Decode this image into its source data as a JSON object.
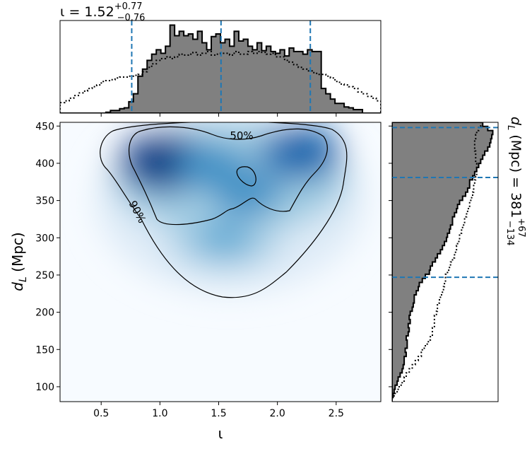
{
  "chart_data": {
    "type": "corner",
    "joint": {
      "type": "heatmap",
      "colormap": "Blues",
      "xlabel": "ι",
      "ylabel_base": "d",
      "ylabel_sub": "L",
      "ylabel_unit": " (Mpc)",
      "xlim": [
        0.15,
        2.88
      ],
      "ylim": [
        80,
        455
      ],
      "xticks": [
        0.5,
        1.0,
        1.5,
        2.0,
        2.5
      ],
      "xtick_labels": [
        "0.5",
        "1.0",
        "1.5",
        "2.0",
        "2.5"
      ],
      "yticks": [
        100,
        150,
        200,
        250,
        300,
        350,
        400,
        450
      ],
      "ytick_labels": [
        "100",
        "150",
        "200",
        "250",
        "300",
        "350",
        "400",
        "450"
      ],
      "density_peaks": [
        {
          "x": 1.03,
          "y": 402,
          "weight": 1.0
        },
        {
          "x": 2.2,
          "y": 415,
          "weight": 0.82
        },
        {
          "x": 1.45,
          "y": 395,
          "weight": 0.55
        },
        {
          "x": 1.75,
          "y": 360,
          "weight": 0.5
        },
        {
          "x": 1.55,
          "y": 300,
          "weight": 0.3
        }
      ],
      "contours": [
        {
          "level": "50%",
          "label": "50%"
        },
        {
          "level": "90%",
          "label": "90%"
        }
      ]
    },
    "iota_marginal": {
      "type": "histogram",
      "median": 1.52,
      "lower": 0.76,
      "upper": 2.28,
      "title_main": "ι = 1.52",
      "title_sup": "+0.77",
      "title_sub": "−0.76",
      "solid_hist": [
        0,
        0,
        0,
        0,
        0,
        0,
        0,
        0,
        0,
        0,
        0.01,
        0.03,
        0.03,
        0.05,
        0.06,
        0.13,
        0.22,
        0.42,
        0.5,
        0.6,
        0.67,
        0.72,
        0.68,
        0.76,
        1.0,
        0.88,
        0.93,
        0.88,
        0.9,
        0.84,
        0.93,
        0.8,
        0.72,
        0.87,
        0.9,
        0.8,
        0.84,
        0.76,
        0.93,
        0.82,
        0.84,
        0.76,
        0.72,
        0.8,
        0.71,
        0.76,
        0.7,
        0.68,
        0.72,
        0.65,
        0.74,
        0.7,
        0.7,
        0.67,
        0.72,
        0.7,
        0.7,
        0.28,
        0.22,
        0.16,
        0.11,
        0.11,
        0.07,
        0.06,
        0.04,
        0.04,
        0.0,
        0.0,
        0.0,
        0.0
      ],
      "dotted_hist": [
        0.12,
        0.14,
        0.17,
        0.2,
        0.23,
        0.25,
        0.28,
        0.3,
        0.32,
        0.36,
        0.37,
        0.38,
        0.4,
        0.41,
        0.41,
        0.42,
        0.43,
        0.44,
        0.47,
        0.52,
        0.56,
        0.6,
        0.62,
        0.64,
        0.62,
        0.64,
        0.67,
        0.66,
        0.67,
        0.69,
        0.66,
        0.68,
        0.7,
        0.66,
        0.67,
        0.68,
        0.68,
        0.66,
        0.7,
        0.67,
        0.67,
        0.7,
        0.68,
        0.7,
        0.69,
        0.67,
        0.68,
        0.64,
        0.64,
        0.6,
        0.58,
        0.55,
        0.52,
        0.5,
        0.48,
        0.46,
        0.44,
        0.44,
        0.42,
        0.4,
        0.36,
        0.33,
        0.32,
        0.3,
        0.28,
        0.24,
        0.22,
        0.19,
        0.17,
        0.14
      ]
    },
    "dl_marginal": {
      "type": "histogram",
      "median": 381,
      "lower": 247,
      "upper": 448,
      "title_main": "d",
      "title_sub_L": "L",
      "title_rest": " (Mpc) = 381",
      "title_sup": "+67",
      "title_sub": "−134",
      "solid_hist": [
        0.0,
        0.01,
        0.02,
        0.03,
        0.05,
        0.06,
        0.08,
        0.1,
        0.11,
        0.12,
        0.12,
        0.14,
        0.13,
        0.15,
        0.15,
        0.14,
        0.16,
        0.17,
        0.16,
        0.18,
        0.17,
        0.18,
        0.2,
        0.21,
        0.22,
        0.22,
        0.24,
        0.26,
        0.27,
        0.3,
        0.33,
        0.37,
        0.38,
        0.4,
        0.43,
        0.45,
        0.48,
        0.5,
        0.52,
        0.54,
        0.55,
        0.57,
        0.58,
        0.6,
        0.6,
        0.62,
        0.64,
        0.65,
        0.67,
        0.7,
        0.73,
        0.75,
        0.77,
        0.77,
        0.8,
        0.82,
        0.84,
        0.86,
        0.88,
        0.9,
        0.92,
        0.95,
        0.97,
        0.98,
        0.99,
        1.0,
        0.95,
        0.9
      ],
      "dotted_hist": [
        0.0,
        0.02,
        0.05,
        0.07,
        0.1,
        0.12,
        0.14,
        0.17,
        0.2,
        0.23,
        0.26,
        0.29,
        0.3,
        0.33,
        0.36,
        0.38,
        0.4,
        0.4,
        0.42,
        0.42,
        0.42,
        0.44,
        0.45,
        0.45,
        0.47,
        0.48,
        0.5,
        0.51,
        0.52,
        0.53,
        0.53,
        0.55,
        0.57,
        0.58,
        0.6,
        0.62,
        0.63,
        0.64,
        0.65,
        0.67,
        0.67,
        0.69,
        0.7,
        0.72,
        0.72,
        0.74,
        0.75,
        0.77,
        0.77,
        0.79,
        0.8,
        0.81,
        0.81,
        0.82,
        0.83,
        0.84,
        0.84,
        0.84,
        0.83,
        0.83,
        0.83,
        0.82,
        0.82,
        0.82,
        0.83,
        0.84,
        0.86,
        0.88
      ]
    },
    "colors": {
      "hist_fill": "#808080",
      "median_lines": "#1f77b4",
      "outline": "#000000"
    }
  }
}
